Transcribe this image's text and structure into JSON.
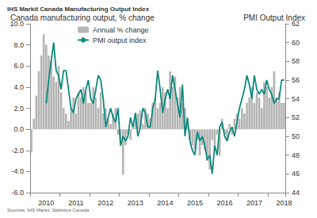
{
  "chart_data": {
    "type": "bar",
    "title": "IHS Markit Canada Manufacturing Output Index",
    "y_label": "Canada manufacturing output, % change",
    "y2_label": "PMI Output Index",
    "source": "Sources: IHS Markit, Statistics Canada",
    "legend": "upper left",
    "grid": false,
    "categories": [
      null,
      null,
      null,
      null,
      null,
      null,
      "2010",
      null,
      null,
      null,
      null,
      null,
      null,
      null,
      null,
      null,
      null,
      null,
      "2011",
      null,
      null,
      null,
      null,
      null,
      null,
      null,
      null,
      null,
      null,
      null,
      "2012",
      null,
      null,
      null,
      null,
      null,
      null,
      null,
      null,
      null,
      null,
      null,
      "2013",
      null,
      null,
      null,
      null,
      null,
      null,
      null,
      null,
      null,
      null,
      null,
      "2014",
      null,
      null,
      null,
      null,
      null,
      null,
      null,
      null,
      null,
      null,
      null,
      "2015",
      null,
      null,
      null,
      null,
      null,
      null,
      null,
      null,
      null,
      null,
      null,
      "2016",
      null,
      null,
      null,
      null,
      null,
      null,
      null,
      null,
      null,
      null,
      null,
      "2017",
      null,
      null,
      null,
      null,
      null,
      null,
      null,
      null,
      null,
      null,
      null,
      "2018"
    ],
    "ylim": [
      -6,
      10
    ],
    "yticks": [
      {
        "value": -6,
        "label": "-6.0"
      },
      {
        "value": -4,
        "label": "-4.0"
      },
      {
        "value": -2,
        "label": "-2.0"
      },
      {
        "value": 0,
        "label": "0.0"
      },
      {
        "value": 2,
        "label": "2.0"
      },
      {
        "value": 4,
        "label": "4.0"
      },
      {
        "value": 6,
        "label": "6.0"
      },
      {
        "value": 8,
        "label": "8.0"
      },
      {
        "value": 10,
        "label": "10.0"
      }
    ],
    "y2lim": [
      44,
      62
    ],
    "y2ticks": [
      44,
      46,
      48,
      50,
      52,
      54,
      56,
      58,
      60,
      62
    ],
    "series": [
      {
        "name": "Annual % change",
        "type": "bar",
        "color": "#b5b5b5",
        "values": [
          -2.2,
          1.0,
          3.2,
          5.5,
          7.0,
          9.0,
          8.0,
          7.0,
          6.5,
          5.0,
          4.5,
          6.0,
          3.5,
          2.0,
          1.5,
          0.8,
          2.0,
          3.0,
          1.5,
          3.5,
          3.0,
          4.0,
          3.5,
          2.5,
          2.5,
          4.0,
          3.0,
          2.0,
          3.5,
          1.5,
          2.0,
          1.0,
          0.5,
          1.5,
          2.0,
          -0.5,
          -1.0,
          -4.3,
          -1.5,
          -0.5,
          -1.0,
          0.5,
          1.0,
          1.5,
          1.8,
          0.5,
          2.0,
          1.5,
          1.0,
          2.5,
          3.0,
          2.0,
          2.5,
          4.0,
          3.5,
          2.0,
          5.5,
          4.0,
          5.0,
          3.0,
          4.0,
          2.5,
          2.0,
          0.5,
          -1.0,
          -1.5,
          -2.0,
          -1.0,
          -2.5,
          -1.5,
          -2.0,
          -3.0,
          -3.8,
          -1.0,
          -2.0,
          -0.5,
          -2.5,
          1.0,
          -0.5,
          -1.0,
          0.5,
          -0.5,
          1.0,
          1.5,
          1.0,
          2.0,
          1.5,
          2.5,
          3.0,
          4.0,
          2.5,
          3.5,
          3.0,
          2.0,
          4.5,
          4.0,
          3.0,
          4.0,
          5.5,
          3.0,
          3.5,
          2.5,
          2.5
        ]
      },
      {
        "name": "PMI output index",
        "type": "line",
        "axis": "y2",
        "color": "#0e8a7d",
        "values": [
          null,
          null,
          null,
          null,
          null,
          null,
          53.5,
          56,
          58,
          60,
          57,
          56.5,
          55,
          57,
          57,
          55,
          53,
          52.5,
          54,
          54.5,
          55,
          53.5,
          55,
          56,
          54,
          53.5,
          55,
          56.5,
          56,
          54,
          51,
          52,
          53,
          52,
          51.5,
          53,
          49,
          50,
          49.5,
          50,
          52,
          51,
          52.5,
          50,
          51,
          53,
          52.5,
          51,
          51,
          53,
          54,
          57,
          55,
          52.5,
          54,
          55,
          54,
          56.5,
          55,
          53.5,
          52,
          55.5,
          50,
          52,
          49.5,
          48.5,
          48,
          50.5,
          49.5,
          50,
          49,
          47.5,
          48,
          46,
          49,
          48,
          51,
          51.5,
          50,
          49.5,
          50.5,
          51,
          50,
          51.5,
          53,
          54,
          55,
          56.5,
          55.5,
          54,
          56.5,
          55,
          54.5,
          55,
          54.5,
          56,
          55,
          54.5,
          53.5,
          54,
          54,
          56,
          56
        ]
      }
    ]
  }
}
